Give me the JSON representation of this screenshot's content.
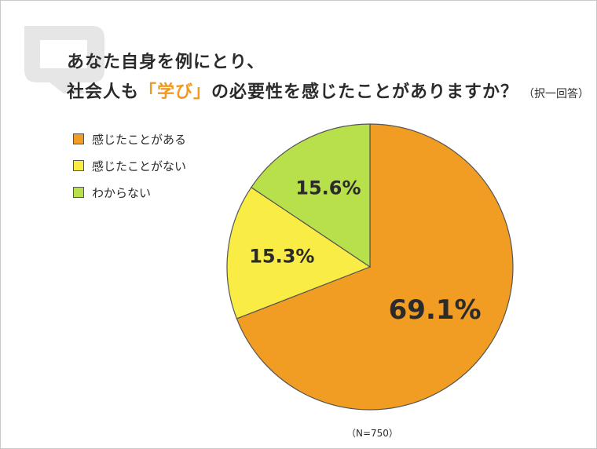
{
  "title": {
    "line1": "あなた自身を例にとり、",
    "line2_before": "社会人も",
    "line2_highlight": "「学び」",
    "line2_after": "の必要性を感じたことがありますか？",
    "note": "（択一回答）"
  },
  "footnote": "（N=750）",
  "chart_data": {
    "type": "pie",
    "title": "あなた自身を例にとり、社会人も「学び」の必要性を感じたことがありますか？",
    "start_angle_deg": 0,
    "direction": "clockwise",
    "legend_position": "left",
    "slices": [
      {
        "label": "感じたことがある",
        "value": 69.1,
        "display": "69.1%",
        "color": "#f19c23"
      },
      {
        "label": "感じたことがない",
        "value": 15.3,
        "display": "15.3%",
        "color": "#f8ec45"
      },
      {
        "label": "わからない",
        "value": 15.6,
        "display": "15.6%",
        "color": "#b8e04a"
      }
    ],
    "n": 750
  },
  "colors": {
    "accent": "#ef9a20",
    "outline": "#555555",
    "q_mark": "#e6e6e6"
  }
}
